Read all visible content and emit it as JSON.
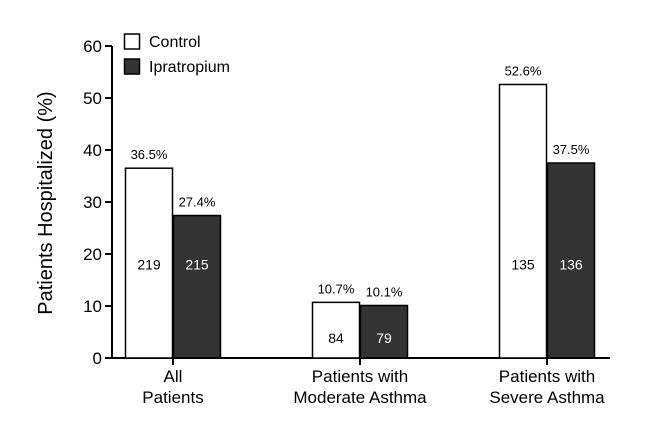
{
  "chart_data": {
    "type": "bar",
    "categories": [
      [
        "All",
        "Patients"
      ],
      [
        "Patients with",
        "Moderate Asthma"
      ],
      [
        "Patients with",
        "Severe Asthma"
      ]
    ],
    "series": [
      {
        "name": "Control",
        "color": "#ffffff",
        "values": [
          36.5,
          10.7,
          52.6
        ],
        "value_labels": [
          "36.5%",
          "10.7%",
          "52.6%"
        ],
        "counts": [
          "219",
          "84",
          "135"
        ]
      },
      {
        "name": "Ipratropium",
        "color": "#333333",
        "values": [
          27.4,
          10.1,
          37.5
        ],
        "value_labels": [
          "27.4%",
          "10.1%",
          "37.5%"
        ],
        "counts": [
          "215",
          "79",
          "136"
        ]
      }
    ],
    "ylabel": "Patients Hospitalized (%)",
    "xlabel": "",
    "ylim": [
      0,
      60
    ],
    "yticks": [
      0,
      10,
      20,
      30,
      40,
      50,
      60
    ],
    "legend_position": "top-left",
    "grid": false
  }
}
